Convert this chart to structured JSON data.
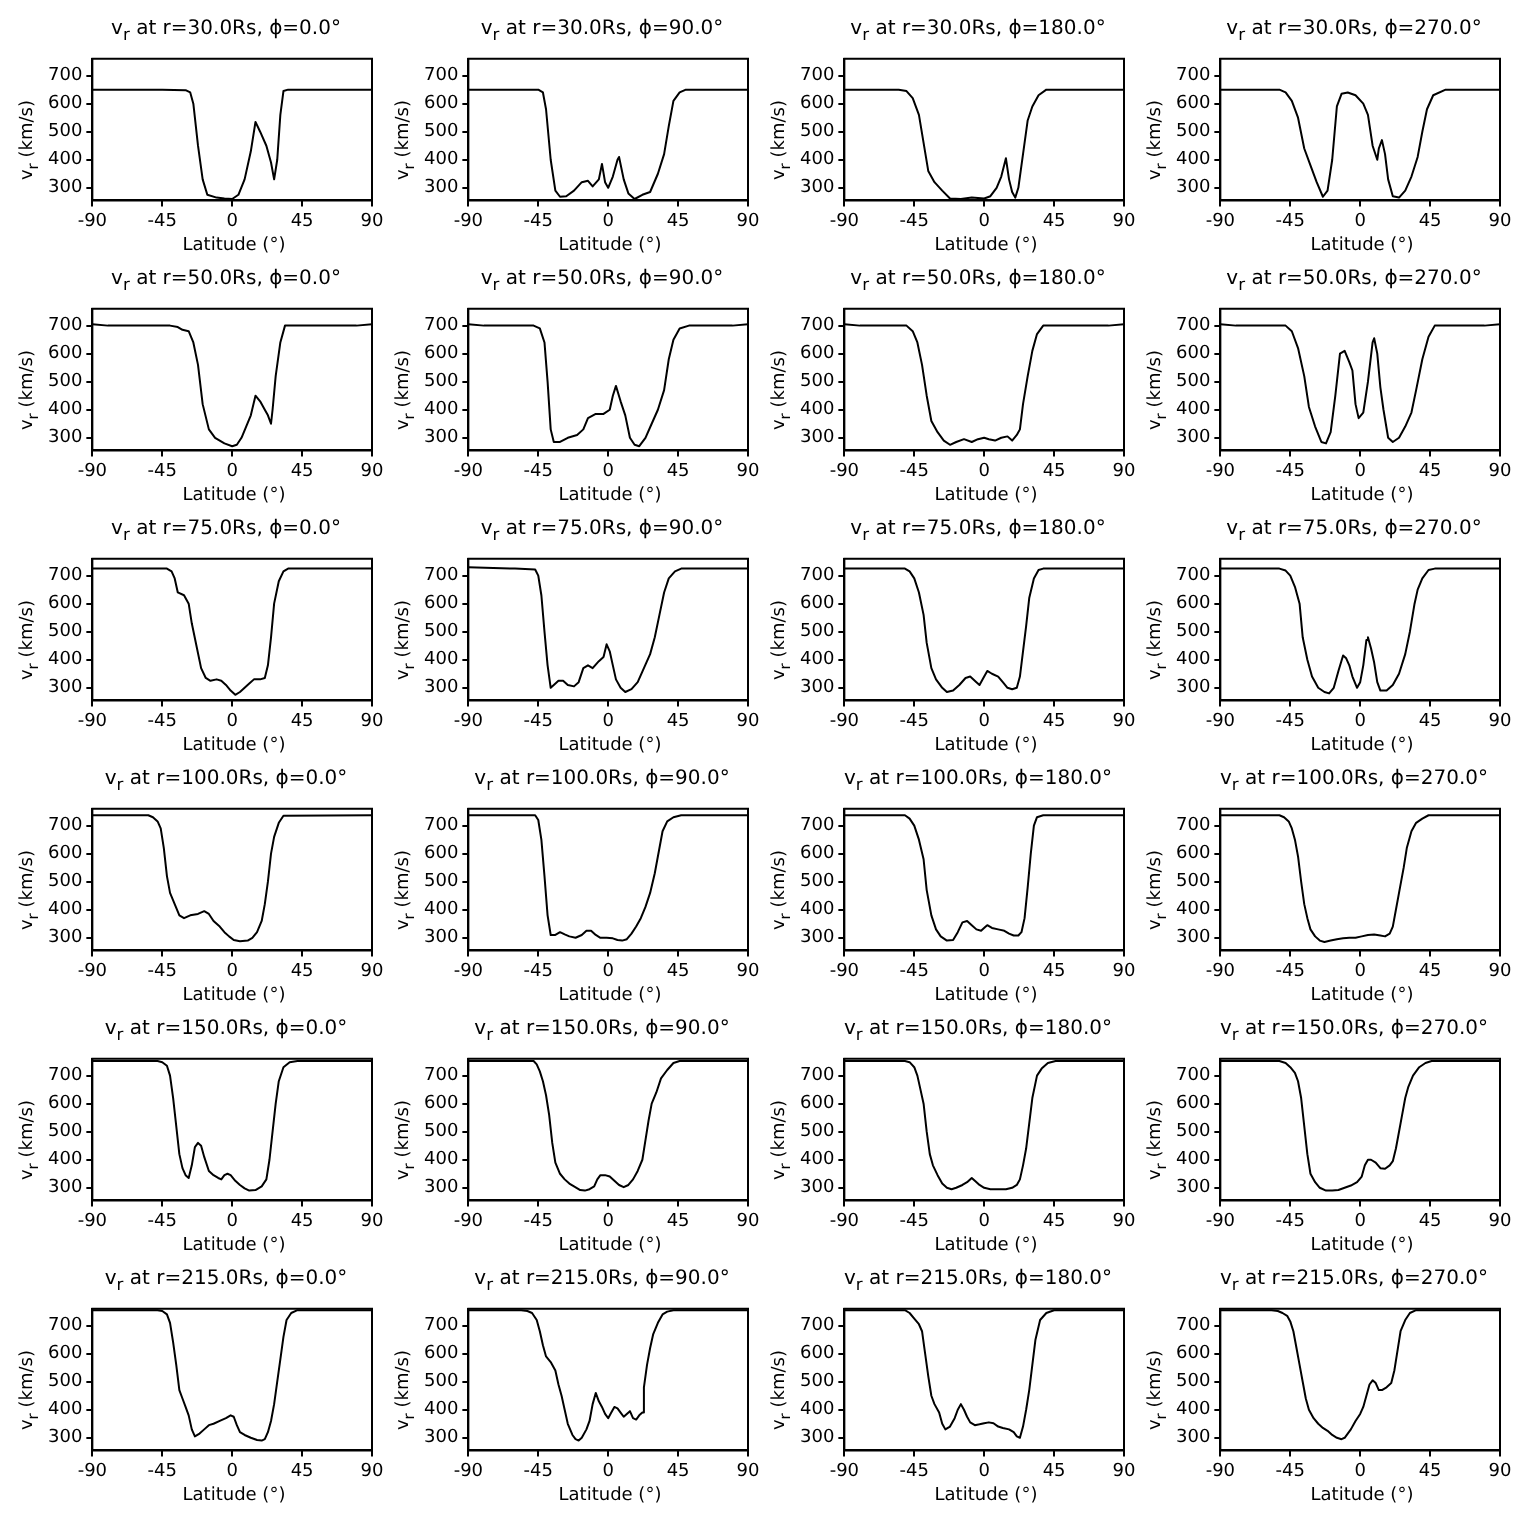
{
  "chart_data": [
    {
      "type": "line",
      "title": "v$_{r}$ at r=30.0Rs, ϕ=0.0°",
      "xlabel": "Latitude (°)",
      "ylabel": "v$_{r}$ (km/s)",
      "color": "#000000",
      "marker": "none",
      "xlim": [
        -90,
        90
      ],
      "ylim": [
        255,
        760
      ],
      "xticks": [
        -90,
        -45,
        0,
        45,
        90
      ],
      "yticks": [
        300,
        400,
        500,
        600,
        700
      ],
      "x": [
        -90,
        -45,
        -30,
        -27,
        -25,
        -22,
        -19,
        -16,
        -10,
        -5,
        0,
        4,
        8,
        12,
        15,
        18,
        22,
        25,
        27,
        29,
        31,
        33,
        36,
        90
      ],
      "values": [
        650,
        650,
        648,
        640,
        600,
        450,
        330,
        275,
        265,
        262,
        260,
        275,
        330,
        430,
        535,
        500,
        450,
        390,
        330,
        400,
        560,
        645,
        650,
        650
      ]
    },
    {
      "type": "line",
      "title": "v$_{r}$ at r=30.0Rs, ϕ=90.0°",
      "xlabel": "Latitude (°)",
      "ylabel": "v$_{r}$ (km/s)",
      "color": "#000000",
      "marker": "none",
      "xlim": [
        -90,
        90
      ],
      "ylim": [
        255,
        760
      ],
      "xticks": [
        -90,
        -45,
        0,
        45,
        90
      ],
      "yticks": [
        300,
        400,
        500,
        600,
        700
      ],
      "x": [
        -90,
        -45,
        -42,
        -40,
        -37,
        -34,
        -31,
        -27,
        -22,
        -17,
        -13,
        -10,
        -6,
        -4,
        -2,
        0,
        3,
        6,
        7,
        10,
        13,
        17,
        22,
        27,
        32,
        36,
        39,
        42,
        46,
        50,
        90
      ],
      "values": [
        650,
        650,
        640,
        580,
        400,
        290,
        268,
        270,
        290,
        320,
        325,
        305,
        330,
        385,
        320,
        300,
        340,
        400,
        410,
        330,
        280,
        260,
        275,
        285,
        350,
        420,
        520,
        610,
        640,
        650,
        650
      ]
    },
    {
      "type": "line",
      "title": "v$_{r}$ at r=30.0Rs, ϕ=180.0°",
      "xlabel": "Latitude (°)",
      "ylabel": "v$_{r}$ (km/s)",
      "color": "#000000",
      "marker": "none",
      "xlim": [
        -90,
        90
      ],
      "ylim": [
        255,
        760
      ],
      "xticks": [
        -90,
        -45,
        0,
        45,
        90
      ],
      "yticks": [
        300,
        400,
        500,
        600,
        700
      ],
      "x": [
        -90,
        -55,
        -50,
        -46,
        -42,
        -39,
        -36,
        -32,
        -27,
        -22,
        -15,
        -8,
        0,
        4,
        8,
        11,
        14,
        16,
        18,
        20,
        22,
        25,
        28,
        31,
        35,
        40,
        90
      ],
      "values": [
        650,
        650,
        645,
        620,
        560,
        460,
        360,
        320,
        290,
        262,
        260,
        265,
        262,
        270,
        300,
        340,
        405,
        330,
        285,
        265,
        300,
        420,
        540,
        590,
        630,
        650,
        650
      ]
    },
    {
      "type": "line",
      "title": "v$_{r}$ at r=30.0Rs, ϕ=270.0°",
      "xlabel": "Latitude (°)",
      "ylabel": "v$_{r}$ (km/s)",
      "color": "#000000",
      "marker": "none",
      "xlim": [
        -90,
        90
      ],
      "ylim": [
        255,
        760
      ],
      "xticks": [
        -90,
        -45,
        0,
        45,
        90
      ],
      "yticks": [
        300,
        400,
        500,
        600,
        700
      ],
      "x": [
        -90,
        -52,
        -48,
        -44,
        -40,
        -36,
        -32,
        -28,
        -24,
        -21,
        -18,
        -15,
        -12,
        -8,
        -3,
        2,
        5,
        8,
        11,
        12,
        14,
        16,
        18,
        21,
        25,
        29,
        33,
        37,
        40,
        43,
        47,
        55,
        90
      ],
      "values": [
        650,
        650,
        640,
        610,
        550,
        440,
        380,
        320,
        268,
        290,
        400,
        590,
        635,
        640,
        630,
        600,
        560,
        450,
        400,
        440,
        470,
        420,
        330,
        270,
        265,
        290,
        340,
        410,
        500,
        580,
        630,
        650,
        650
      ]
    },
    {
      "type": "line",
      "title": "v$_{r}$ at r=50.0Rs, ϕ=0.0°",
      "xlabel": "Latitude (°)",
      "ylabel": "v$_{r}$ (km/s)",
      "color": "#000000",
      "marker": "none",
      "xlim": [
        -90,
        90
      ],
      "ylim": [
        255,
        760
      ],
      "xticks": [
        -90,
        -45,
        0,
        45,
        90
      ],
      "yticks": [
        300,
        400,
        500,
        600,
        700
      ],
      "x": [
        -90,
        -80,
        -40,
        -35,
        -32,
        -28,
        -25,
        -22,
        -19,
        -15,
        -11,
        -5,
        0,
        3,
        6,
        9,
        12,
        15,
        18,
        21,
        23,
        25,
        26,
        28,
        31,
        34,
        80,
        90
      ],
      "values": [
        705,
        700,
        700,
        695,
        685,
        680,
        640,
        560,
        420,
        330,
        300,
        280,
        270,
        275,
        300,
        340,
        380,
        450,
        430,
        400,
        380,
        350,
        400,
        520,
        640,
        700,
        700,
        705
      ]
    },
    {
      "type": "line",
      "title": "v$_{r}$ at r=50.0Rs, ϕ=90.0°",
      "xlabel": "Latitude (°)",
      "ylabel": "v$_{r}$ (km/s)",
      "color": "#000000",
      "marker": "none",
      "xlim": [
        -90,
        90
      ],
      "ylim": [
        255,
        760
      ],
      "xticks": [
        -90,
        -45,
        0,
        45,
        90
      ],
      "yticks": [
        300,
        400,
        500,
        600,
        700
      ],
      "x": [
        -90,
        -80,
        -48,
        -44,
        -41,
        -39,
        -37,
        -35,
        -31,
        -26,
        -20,
        -16,
        -13,
        -8,
        -3,
        1,
        3,
        5,
        8,
        11,
        14,
        17,
        20,
        24,
        28,
        32,
        36,
        39,
        42,
        46,
        52,
        80,
        90
      ],
      "values": [
        705,
        700,
        700,
        690,
        640,
        500,
        330,
        285,
        285,
        300,
        310,
        330,
        370,
        385,
        385,
        400,
        450,
        485,
        430,
        380,
        300,
        275,
        270,
        300,
        350,
        400,
        470,
        580,
        650,
        690,
        700,
        700,
        705
      ]
    },
    {
      "type": "line",
      "title": "v$_{r}$ at r=50.0Rs, ϕ=180.0°",
      "xlabel": "Latitude (°)",
      "ylabel": "v$_{r}$ (km/s)",
      "color": "#000000",
      "marker": "none",
      "xlim": [
        -90,
        90
      ],
      "ylim": [
        255,
        760
      ],
      "xticks": [
        -90,
        -45,
        0,
        45,
        90
      ],
      "yticks": [
        300,
        400,
        500,
        600,
        700
      ],
      "x": [
        -90,
        -80,
        -50,
        -46,
        -43,
        -40,
        -37,
        -34,
        -30,
        -26,
        -22,
        -18,
        -13,
        -8,
        -4,
        0,
        3,
        7,
        11,
        15,
        18,
        21,
        23,
        25,
        28,
        31,
        34,
        38,
        80,
        90
      ],
      "values": [
        705,
        700,
        700,
        680,
        640,
        560,
        450,
        360,
        320,
        290,
        275,
        285,
        295,
        285,
        295,
        300,
        295,
        290,
        300,
        305,
        290,
        310,
        330,
        420,
        520,
        610,
        670,
        700,
        700,
        705
      ]
    },
    {
      "type": "line",
      "title": "v$_{r}$ at r=50.0Rs, ϕ=270.0°",
      "xlabel": "Latitude (°)",
      "ylabel": "v$_{r}$ (km/s)",
      "color": "#000000",
      "marker": "none",
      "xlim": [
        -90,
        90
      ],
      "ylim": [
        255,
        760
      ],
      "xticks": [
        -90,
        -45,
        0,
        45,
        90
      ],
      "yticks": [
        300,
        400,
        500,
        600,
        700
      ],
      "x": [
        -90,
        -80,
        -48,
        -44,
        -40,
        -36,
        -33,
        -29,
        -25,
        -22,
        -19,
        -16,
        -13,
        -10,
        -7,
        -5,
        -3,
        -1,
        2,
        5,
        8,
        9,
        11,
        13,
        15,
        18,
        21,
        25,
        29,
        33,
        36,
        40,
        44,
        48,
        80,
        90
      ],
      "values": [
        705,
        700,
        700,
        680,
        620,
        520,
        410,
        340,
        285,
        280,
        320,
        450,
        600,
        610,
        570,
        540,
        420,
        370,
        390,
        500,
        640,
        655,
        600,
        480,
        400,
        300,
        285,
        300,
        340,
        390,
        470,
        580,
        660,
        700,
        700,
        705
      ]
    },
    {
      "type": "line",
      "title": "v$_{r}$ at r=75.0Rs, ϕ=0.0°",
      "xlabel": "Latitude (°)",
      "ylabel": "v$_{r}$ (km/s)",
      "color": "#000000",
      "marker": "none",
      "xlim": [
        -90,
        90
      ],
      "ylim": [
        255,
        760
      ],
      "xticks": [
        -90,
        -45,
        0,
        45,
        90
      ],
      "yticks": [
        300,
        400,
        500,
        600,
        700
      ],
      "x": [
        -90,
        -42,
        -39,
        -37,
        -35,
        -31,
        -28,
        -26,
        -23,
        -20,
        -17,
        -14,
        -10,
        -7,
        -4,
        -1,
        2,
        5,
        8,
        11,
        14,
        18,
        21,
        23,
        25,
        27,
        30,
        33,
        36,
        90
      ],
      "values": [
        725,
        725,
        715,
        690,
        640,
        630,
        600,
        530,
        450,
        370,
        335,
        325,
        330,
        325,
        310,
        290,
        275,
        285,
        300,
        315,
        330,
        330,
        335,
        380,
        480,
        600,
        680,
        715,
        725,
        725
      ]
    },
    {
      "type": "line",
      "title": "v$_{r}$ at r=75.0Rs, ϕ=90.0°",
      "xlabel": "Latitude (°)",
      "ylabel": "v$_{r}$ (km/s)",
      "color": "#000000",
      "marker": "none",
      "xlim": [
        -90,
        90
      ],
      "ylim": [
        255,
        760
      ],
      "xticks": [
        -90,
        -45,
        0,
        45,
        90
      ],
      "yticks": [
        300,
        400,
        500,
        600,
        700
      ],
      "x": [
        -90,
        -60,
        -47,
        -45,
        -43,
        -41,
        -39,
        -37,
        -35,
        -32,
        -29,
        -26,
        -22,
        -19,
        -16,
        -13,
        -10,
        -6,
        -3,
        -1,
        1,
        3,
        5,
        8,
        11,
        15,
        19,
        23,
        27,
        30,
        33,
        36,
        39,
        43,
        47,
        90
      ],
      "values": [
        730,
        725,
        722,
        700,
        630,
        500,
        380,
        300,
        310,
        325,
        325,
        310,
        305,
        320,
        370,
        380,
        370,
        395,
        410,
        455,
        430,
        380,
        330,
        300,
        285,
        295,
        320,
        370,
        420,
        480,
        560,
        640,
        690,
        715,
        725,
        725
      ]
    },
    {
      "type": "line",
      "title": "v$_{r}$ at r=75.0Rs, ϕ=180.0°",
      "xlabel": "Latitude (°)",
      "ylabel": "v$_{r}$ (km/s)",
      "color": "#000000",
      "marker": "none",
      "xlim": [
        -90,
        90
      ],
      "ylim": [
        255,
        760
      ],
      "xticks": [
        -90,
        -45,
        0,
        45,
        90
      ],
      "yticks": [
        300,
        400,
        500,
        600,
        700
      ],
      "x": [
        -90,
        -51,
        -48,
        -45,
        -42,
        -39,
        -37,
        -34,
        -31,
        -27,
        -24,
        -20,
        -16,
        -12,
        -9,
        -5,
        -3,
        0,
        2,
        5,
        9,
        12,
        15,
        18,
        21,
        23,
        25,
        27,
        29,
        32,
        35,
        38,
        90
      ],
      "values": [
        725,
        725,
        715,
        690,
        640,
        560,
        460,
        370,
        330,
        300,
        285,
        290,
        310,
        335,
        340,
        320,
        310,
        340,
        360,
        350,
        340,
        320,
        300,
        295,
        300,
        340,
        430,
        520,
        620,
        690,
        720,
        725,
        725
      ]
    },
    {
      "type": "line",
      "title": "v$_{r}$ at r=75.0Rs, ϕ=270.0°",
      "xlabel": "Latitude (°)",
      "ylabel": "v$_{r}$ (km/s)",
      "color": "#000000",
      "marker": "none",
      "xlim": [
        -90,
        90
      ],
      "ylim": [
        255,
        760
      ],
      "xticks": [
        -90,
        -45,
        0,
        45,
        90
      ],
      "yticks": [
        300,
        400,
        500,
        600,
        700
      ],
      "x": [
        -90,
        -52,
        -48,
        -45,
        -42,
        -39,
        -37,
        -34,
        -31,
        -27,
        -23,
        -20,
        -17,
        -14,
        -11,
        -9,
        -7,
        -5,
        -2,
        0,
        2,
        4,
        5,
        7,
        9,
        11,
        13,
        17,
        21,
        25,
        29,
        32,
        35,
        37,
        40,
        44,
        48,
        90
      ],
      "values": [
        725,
        725,
        718,
        700,
        660,
        600,
        480,
        400,
        340,
        300,
        285,
        280,
        300,
        360,
        415,
        405,
        380,
        340,
        300,
        320,
        380,
        470,
        480,
        440,
        390,
        320,
        290,
        290,
        310,
        350,
        420,
        500,
        600,
        650,
        690,
        720,
        725,
        725
      ]
    },
    {
      "type": "line",
      "title": "v$_{r}$ at r=100.0Rs, ϕ=0.0°",
      "xlabel": "Latitude (°)",
      "ylabel": "v$_{r}$ (km/s)",
      "color": "#000000",
      "marker": "none",
      "xlim": [
        -90,
        90
      ],
      "ylim": [
        255,
        760
      ],
      "xticks": [
        -90,
        -45,
        0,
        45,
        90
      ],
      "yticks": [
        300,
        400,
        500,
        600,
        700
      ],
      "x": [
        -90,
        -54,
        -51,
        -48,
        -46,
        -44,
        -42,
        -40,
        -37,
        -34,
        -31,
        -27,
        -22,
        -18,
        -15,
        -12,
        -8,
        -5,
        -2,
        1,
        5,
        10,
        13,
        16,
        19,
        21,
        23,
        25,
        27,
        30,
        33,
        90
      ],
      "values": [
        737,
        737,
        730,
        715,
        690,
        620,
        520,
        460,
        420,
        380,
        370,
        380,
        385,
        395,
        385,
        360,
        340,
        320,
        305,
        292,
        288,
        290,
        300,
        320,
        360,
        420,
        500,
        600,
        660,
        710,
        735,
        737
      ]
    },
    {
      "type": "line",
      "title": "v$_{r}$ at r=100.0Rs, ϕ=90.0°",
      "xlabel": "Latitude (°)",
      "ylabel": "v$_{r}$ (km/s)",
      "color": "#000000",
      "marker": "none",
      "xlim": [
        -90,
        90
      ],
      "ylim": [
        255,
        760
      ],
      "xticks": [
        -90,
        -45,
        0,
        45,
        90
      ],
      "yticks": [
        300,
        400,
        500,
        600,
        700
      ],
      "x": [
        -90,
        -47,
        -45,
        -43,
        -41,
        -39,
        -37,
        -34,
        -31,
        -28,
        -25,
        -21,
        -17,
        -14,
        -11,
        -8,
        -5,
        -1,
        3,
        6,
        9,
        12,
        15,
        18,
        21,
        24,
        27,
        30,
        33,
        35,
        38,
        42,
        47,
        90
      ],
      "values": [
        737,
        737,
        720,
        650,
        520,
        380,
        310,
        310,
        320,
        312,
        305,
        300,
        310,
        325,
        325,
        310,
        300,
        300,
        298,
        292,
        290,
        295,
        315,
        340,
        370,
        410,
        460,
        530,
        620,
        680,
        715,
        730,
        737,
        737
      ]
    },
    {
      "type": "line",
      "title": "v$_{r}$ at r=100.0Rs, ϕ=180.0°",
      "xlabel": "Latitude (°)",
      "ylabel": "v$_{r}$ (km/s)",
      "color": "#000000",
      "marker": "none",
      "xlim": [
        -90,
        90
      ],
      "ylim": [
        255,
        760
      ],
      "xticks": [
        -90,
        -45,
        0,
        45,
        90
      ],
      "yticks": [
        300,
        400,
        500,
        600,
        700
      ],
      "x": [
        -90,
        -51,
        -48,
        -45,
        -42,
        -39,
        -37,
        -34,
        -31,
        -28,
        -24,
        -20,
        -17,
        -14,
        -11,
        -8,
        -5,
        -2,
        1,
        2,
        5,
        9,
        13,
        16,
        19,
        22,
        24,
        26,
        28,
        30,
        32,
        34,
        38,
        90
      ],
      "values": [
        737,
        737,
        725,
        700,
        650,
        580,
        470,
        380,
        330,
        305,
        290,
        292,
        320,
        355,
        360,
        345,
        330,
        325,
        340,
        345,
        335,
        330,
        325,
        315,
        308,
        308,
        320,
        370,
        480,
        600,
        700,
        730,
        737,
        737
      ]
    },
    {
      "type": "line",
      "title": "v$_{r}$ at r=100.0Rs, ϕ=270.0°",
      "xlabel": "Latitude (°)",
      "ylabel": "v$_{r}$ (km/s)",
      "color": "#000000",
      "marker": "none",
      "xlim": [
        -90,
        90
      ],
      "ylim": [
        255,
        760
      ],
      "xticks": [
        -90,
        -45,
        0,
        45,
        90
      ],
      "yticks": [
        300,
        400,
        500,
        600,
        700
      ],
      "x": [
        -90,
        -52,
        -49,
        -46,
        -44,
        -42,
        -40,
        -38,
        -36,
        -34,
        -32,
        -29,
        -26,
        -23,
        -19,
        -15,
        -11,
        -7,
        -3,
        1,
        5,
        9,
        13,
        16,
        19,
        21,
        23,
        25,
        28,
        30,
        33,
        36,
        40,
        44,
        90
      ],
      "values": [
        737,
        737,
        730,
        715,
        690,
        650,
        590,
        500,
        420,
        370,
        330,
        305,
        290,
        285,
        290,
        295,
        298,
        300,
        300,
        305,
        310,
        312,
        308,
        305,
        315,
        340,
        400,
        460,
        550,
        620,
        680,
        710,
        725,
        737,
        737
      ]
    },
    {
      "type": "line",
      "title": "v$_{r}$ at r=150.0Rs, ϕ=0.0°",
      "xlabel": "Latitude (°)",
      "ylabel": "v$_{r}$ (km/s)",
      "color": "#000000",
      "marker": "none",
      "xlim": [
        -90,
        90
      ],
      "ylim": [
        255,
        760
      ],
      "xticks": [
        -90,
        -45,
        0,
        45,
        90
      ],
      "yticks": [
        300,
        400,
        500,
        600,
        700
      ],
      "x": [
        -90,
        -48,
        -45,
        -42,
        -40,
        -38,
        -36,
        -34,
        -32,
        -30,
        -28,
        -26,
        -24,
        -22,
        -20,
        -18,
        -15,
        -12,
        -9,
        -7,
        -5,
        -3,
        -1,
        2,
        5,
        8,
        11,
        15,
        19,
        22,
        24,
        26,
        28,
        30,
        33,
        37,
        42,
        90
      ],
      "values": [
        752,
        752,
        748,
        735,
        700,
        620,
        520,
        420,
        370,
        345,
        335,
        380,
        445,
        460,
        450,
        410,
        360,
        345,
        335,
        330,
        345,
        350,
        345,
        325,
        310,
        298,
        290,
        292,
        305,
        330,
        400,
        500,
        600,
        680,
        730,
        748,
        752,
        752
      ]
    },
    {
      "type": "line",
      "title": "v$_{r}$ at r=150.0Rs, ϕ=90.0°",
      "xlabel": "Latitude (°)",
      "ylabel": "v$_{r}$ (km/s)",
      "color": "#000000",
      "marker": "none",
      "xlim": [
        -90,
        90
      ],
      "ylim": [
        255,
        760
      ],
      "xticks": [
        -90,
        -45,
        0,
        45,
        90
      ],
      "yticks": [
        300,
        400,
        500,
        600,
        700
      ],
      "x": [
        -90,
        -48,
        -46,
        -44,
        -42,
        -40,
        -38,
        -36,
        -34,
        -31,
        -28,
        -25,
        -22,
        -18,
        -15,
        -12,
        -9,
        -7,
        -5,
        -2,
        1,
        4,
        7,
        10,
        13,
        16,
        19,
        22,
        24,
        26,
        28,
        31,
        34,
        38,
        42,
        46,
        90
      ],
      "values": [
        752,
        752,
        740,
        715,
        680,
        630,
        560,
        460,
        390,
        350,
        330,
        315,
        305,
        292,
        290,
        295,
        305,
        330,
        345,
        345,
        340,
        325,
        310,
        302,
        310,
        330,
        360,
        400,
        470,
        540,
        600,
        640,
        690,
        720,
        745,
        752,
        752
      ]
    },
    {
      "type": "line",
      "title": "v$_{r}$ at r=150.0Rs, ϕ=180.0°",
      "xlabel": "Latitude (°)",
      "ylabel": "v$_{r}$ (km/s)",
      "color": "#000000",
      "marker": "none",
      "xlim": [
        -90,
        90
      ],
      "ylim": [
        255,
        760
      ],
      "xticks": [
        -90,
        -45,
        0,
        45,
        90
      ],
      "yticks": [
        300,
        400,
        500,
        600,
        700
      ],
      "x": [
        -90,
        -51,
        -48,
        -45,
        -43,
        -41,
        -39,
        -37,
        -35,
        -33,
        -30,
        -27,
        -24,
        -21,
        -18,
        -14,
        -11,
        -8,
        -6,
        -3,
        0,
        4,
        9,
        14,
        18,
        21,
        23,
        25,
        27,
        29,
        31,
        34,
        37,
        41,
        46,
        90
      ],
      "values": [
        752,
        752,
        748,
        730,
        700,
        650,
        600,
        500,
        420,
        380,
        345,
        315,
        300,
        295,
        300,
        310,
        320,
        335,
        325,
        310,
        300,
        295,
        295,
        295,
        300,
        310,
        330,
        380,
        440,
        530,
        620,
        700,
        725,
        745,
        752,
        752
      ]
    },
    {
      "type": "line",
      "title": "v$_{r}$ at r=150.0Rs, ϕ=270.0°",
      "xlabel": "Latitude (°)",
      "ylabel": "v$_{r}$ (km/s)",
      "color": "#000000",
      "marker": "none",
      "xlim": [
        -90,
        90
      ],
      "ylim": [
        255,
        760
      ],
      "xticks": [
        -90,
        -45,
        0,
        45,
        90
      ],
      "yticks": [
        300,
        400,
        500,
        600,
        700
      ],
      "x": [
        -90,
        -52,
        -48,
        -45,
        -42,
        -40,
        -38,
        -36,
        -34,
        -32,
        -29,
        -26,
        -22,
        -18,
        -14,
        -10,
        -6,
        -2,
        1,
        3,
        5,
        7,
        10,
        13,
        16,
        19,
        21,
        23,
        25,
        27,
        29,
        31,
        34,
        38,
        42,
        46,
        90
      ],
      "values": [
        752,
        752,
        745,
        730,
        710,
        680,
        620,
        520,
        420,
        350,
        320,
        300,
        290,
        290,
        292,
        300,
        308,
        320,
        340,
        380,
        400,
        400,
        390,
        370,
        368,
        380,
        395,
        440,
        500,
        560,
        620,
        660,
        700,
        730,
        745,
        752,
        752
      ]
    },
    {
      "type": "line",
      "title": "v$_{r}$ at r=215.0Rs, ϕ=0.0°",
      "xlabel": "Latitude (°)",
      "ylabel": "v$_{r}$ (km/s)",
      "color": "#000000",
      "marker": "none",
      "xlim": [
        -90,
        90
      ],
      "ylim": [
        255,
        760
      ],
      "xticks": [
        -90,
        -45,
        0,
        45,
        90
      ],
      "yticks": [
        300,
        400,
        500,
        600,
        700
      ],
      "x": [
        -90,
        -48,
        -45,
        -42,
        -40,
        -38,
        -36,
        -34,
        -32,
        -30,
        -28,
        -26,
        -24,
        -21,
        -18,
        -15,
        -12,
        -8,
        -4,
        -1,
        1,
        3,
        5,
        8,
        12,
        16,
        19,
        21,
        23,
        25,
        27,
        29,
        31,
        33,
        35,
        38,
        42,
        90
      ],
      "values": [
        755,
        755,
        752,
        740,
        710,
        640,
        560,
        470,
        440,
        410,
        380,
        330,
        305,
        315,
        330,
        345,
        350,
        360,
        370,
        380,
        375,
        345,
        320,
        310,
        300,
        292,
        290,
        295,
        320,
        360,
        420,
        500,
        580,
        660,
        720,
        745,
        755,
        755
      ]
    },
    {
      "type": "line",
      "title": "v$_{r}$ at r=215.0Rs, ϕ=90.0°",
      "xlabel": "Latitude (°)",
      "ylabel": "v$_{r}$ (km/s)",
      "color": "#000000",
      "marker": "none",
      "xlim": [
        -90,
        90
      ],
      "ylim": [
        255,
        760
      ],
      "xticks": [
        -90,
        -45,
        0,
        45,
        90
      ],
      "yticks": [
        300,
        400,
        500,
        600,
        700
      ],
      "x": [
        -90,
        -56,
        -52,
        -49,
        -46,
        -44,
        -42,
        -40,
        -37,
        -34,
        -32,
        -30,
        -28,
        -26,
        -23,
        -21,
        -19,
        -17,
        -14,
        -12,
        -10,
        -8,
        -6,
        -4,
        -2,
        0,
        2,
        4,
        6,
        8,
        10,
        12,
        14,
        16,
        18,
        20,
        22,
        23,
        25,
        27,
        29,
        32,
        35,
        38,
        42,
        90
      ],
      "values": [
        755,
        755,
        752,
        745,
        720,
        680,
        630,
        590,
        570,
        540,
        490,
        450,
        400,
        350,
        310,
        295,
        290,
        300,
        330,
        360,
        420,
        460,
        430,
        410,
        385,
        370,
        390,
        410,
        405,
        390,
        375,
        385,
        395,
        370,
        365,
        380,
        390,
        480,
        560,
        620,
        670,
        710,
        740,
        750,
        755,
        755
      ]
    },
    {
      "type": "line",
      "title": "v$_{r}$ at r=215.0Rs, ϕ=180.0°",
      "xlabel": "Latitude (°)",
      "ylabel": "v$_{r}$ (km/s)",
      "color": "#000000",
      "marker": "none",
      "xlim": [
        -90,
        90
      ],
      "ylim": [
        255,
        760
      ],
      "xticks": [
        -90,
        -45,
        0,
        45,
        90
      ],
      "yticks": [
        300,
        400,
        500,
        600,
        700
      ],
      "x": [
        -90,
        -51,
        -48,
        -45,
        -42,
        -40,
        -38,
        -36,
        -34,
        -32,
        -29,
        -27,
        -25,
        -22,
        -19,
        -17,
        -15,
        -13,
        -11,
        -9,
        -6,
        -3,
        0,
        3,
        6,
        9,
        12,
        16,
        19,
        21,
        23,
        25,
        27,
        29,
        31,
        33,
        36,
        40,
        45,
        90
      ],
      "values": [
        755,
        755,
        745,
        725,
        705,
        680,
        600,
        520,
        450,
        420,
        390,
        350,
        330,
        340,
        370,
        400,
        420,
        400,
        375,
        355,
        345,
        348,
        352,
        355,
        352,
        340,
        335,
        330,
        320,
        305,
        300,
        340,
        400,
        470,
        560,
        650,
        720,
        745,
        755,
        755
      ]
    },
    {
      "type": "line",
      "title": "v$_{r}$ at r=215.0Rs, ϕ=270.0°",
      "xlabel": "Latitude (°)",
      "ylabel": "v$_{r}$ (km/s)",
      "color": "#000000",
      "marker": "none",
      "xlim": [
        -90,
        90
      ],
      "ylim": [
        255,
        760
      ],
      "xticks": [
        -90,
        -45,
        0,
        45,
        90
      ],
      "yticks": [
        300,
        400,
        500,
        600,
        700
      ],
      "x": [
        -90,
        -57,
        -53,
        -50,
        -47,
        -45,
        -43,
        -41,
        -39,
        -37,
        -35,
        -33,
        -30,
        -27,
        -24,
        -21,
        -18,
        -15,
        -12,
        -10,
        -8,
        -6,
        -3,
        0,
        2,
        4,
        6,
        8,
        10,
        12,
        14,
        17,
        20,
        22,
        24,
        26,
        29,
        32,
        36,
        90
      ],
      "values": [
        755,
        755,
        752,
        745,
        735,
        715,
        680,
        620,
        560,
        500,
        440,
        400,
        370,
        350,
        335,
        325,
        310,
        300,
        295,
        300,
        315,
        330,
        360,
        385,
        410,
        450,
        490,
        505,
        495,
        470,
        470,
        480,
        495,
        540,
        610,
        680,
        720,
        745,
        755,
        755
      ]
    }
  ]
}
